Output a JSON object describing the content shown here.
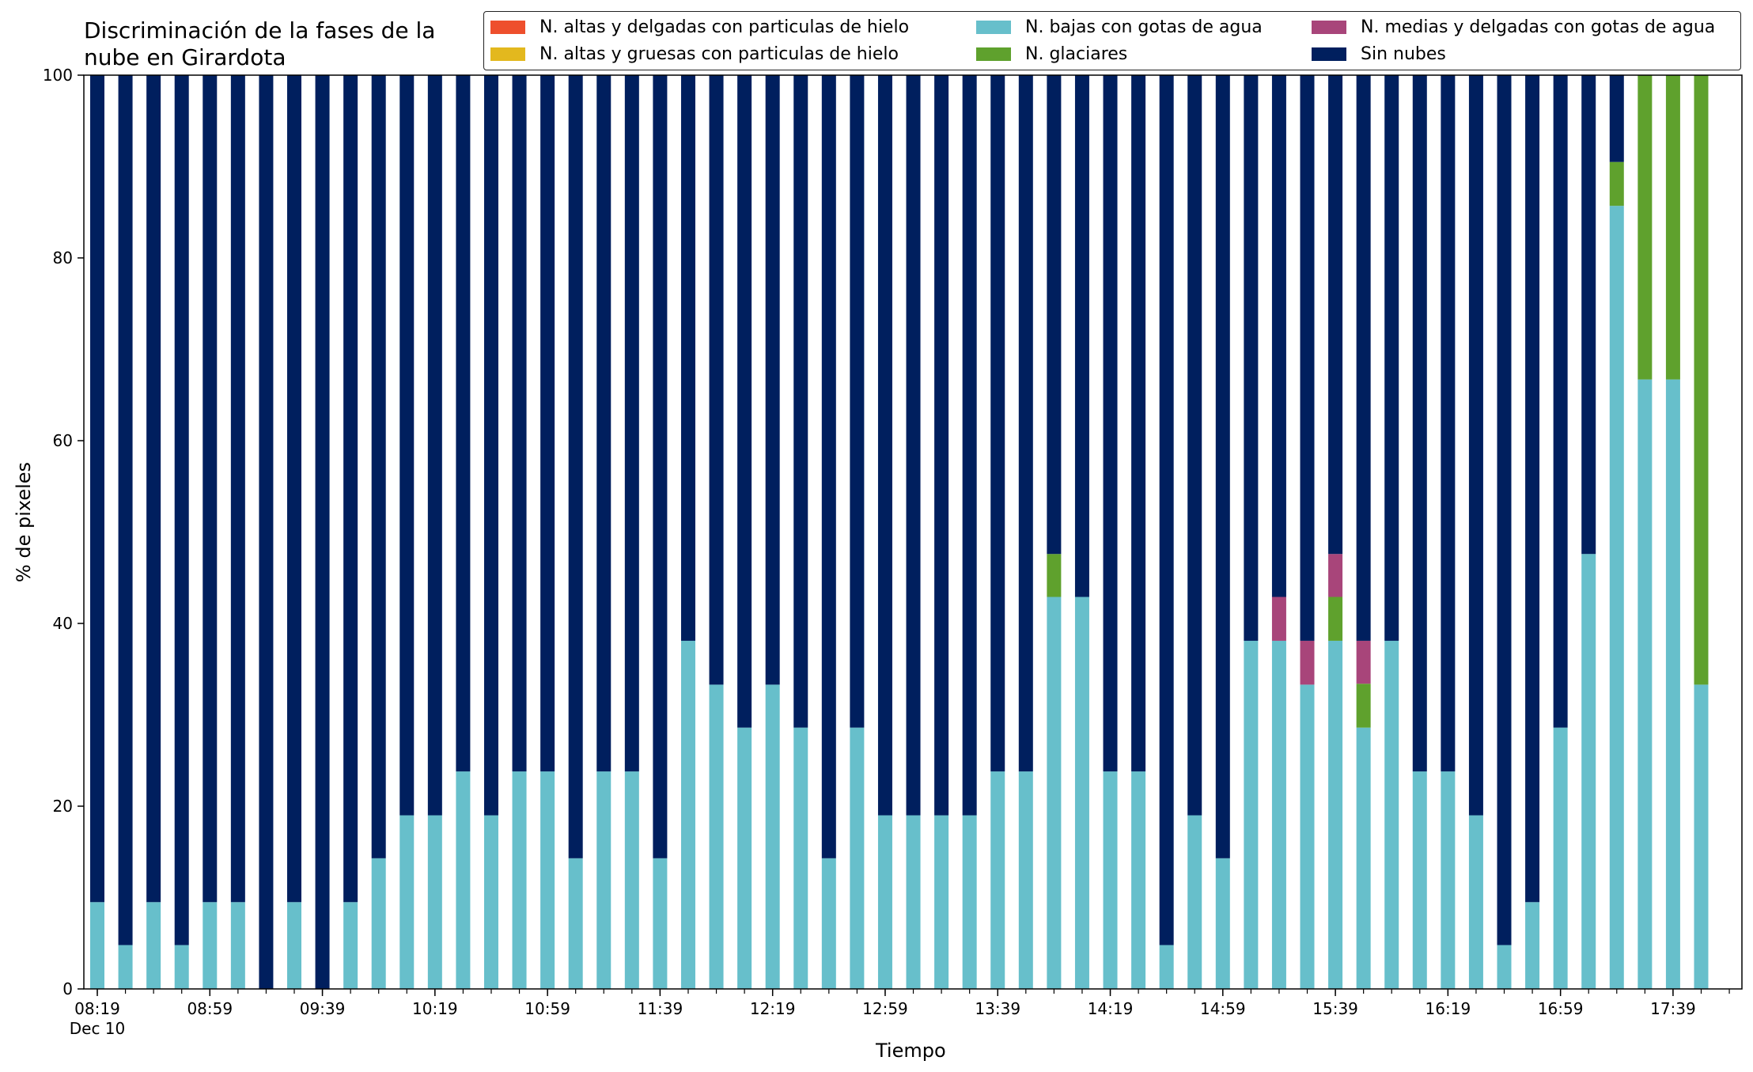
{
  "chart_data": {
    "type": "bar",
    "stacked": true,
    "title": "Discriminación de la fases de la nube en Girardota",
    "title_lines": [
      "Discriminación de la fases de la",
      "nube en Girardota"
    ],
    "xlabel": "Tiempo",
    "ylabel": "% de pixeles",
    "ylim": [
      0,
      100
    ],
    "yticks": [
      0,
      20,
      40,
      60,
      80,
      100
    ],
    "xtick_labels": [
      "08:19",
      "08:59",
      "09:39",
      "10:19",
      "10:59",
      "11:39",
      "12:19",
      "12:59",
      "13:39",
      "14:19",
      "14:59",
      "15:39",
      "16:19",
      "16:59",
      "17:39"
    ],
    "xtick_sublabel": "Dec 10",
    "grid": false,
    "legend_position": "top",
    "bar_count": 58,
    "series": [
      {
        "name": "N. bajas con gotas de agua",
        "color": "#67bfcb",
        "values": [
          9.5,
          4.8,
          9.5,
          4.8,
          9.5,
          9.5,
          0,
          9.5,
          0,
          9.5,
          14.3,
          19,
          19,
          23.8,
          19,
          23.8,
          23.8,
          14.3,
          23.8,
          23.8,
          14.3,
          38.1,
          33.3,
          28.6,
          33.3,
          28.6,
          14.3,
          28.6,
          19,
          19,
          19,
          19,
          23.8,
          23.8,
          42.9,
          42.9,
          23.8,
          23.8,
          4.8,
          19,
          14.3,
          38.1,
          38.1,
          33.3,
          38.1,
          28.6,
          38.1,
          23.8,
          23.8,
          19,
          4.8,
          9.5,
          28.6,
          47.6,
          85.7,
          66.7,
          66.7,
          33.3
        ]
      },
      {
        "name": "N. glaciares",
        "color": "#5fa12d",
        "values": [
          0,
          0,
          0,
          0,
          0,
          0,
          0,
          0,
          0,
          0,
          0,
          0,
          0,
          0,
          0,
          0,
          0,
          0,
          0,
          0,
          0,
          0,
          0,
          0,
          0,
          0,
          0,
          0,
          0,
          0,
          0,
          0,
          0,
          0,
          4.7,
          0,
          0,
          0,
          0,
          0,
          0,
          0,
          0,
          0,
          4.8,
          4.8,
          0,
          0,
          0,
          0,
          0,
          0,
          0,
          0,
          4.8,
          33.3,
          33.3,
          66.7
        ]
      },
      {
        "name": "N. medias y delgadas con gotas de agua",
        "color": "#a8457a",
        "values": [
          0,
          0,
          0,
          0,
          0,
          0,
          0,
          0,
          0,
          0,
          0,
          0,
          0,
          0,
          0,
          0,
          0,
          0,
          0,
          0,
          0,
          0,
          0,
          0,
          0,
          0,
          0,
          0,
          0,
          0,
          0,
          0,
          0,
          0,
          0,
          0,
          0,
          0,
          0,
          0,
          0,
          0,
          4.8,
          4.8,
          4.7,
          4.7,
          0,
          0,
          0,
          0,
          0,
          0,
          0,
          0,
          0,
          0,
          0,
          0
        ]
      },
      {
        "name": "N. altas y delgadas con particulas de hielo",
        "color": "#ee4f2d",
        "values": [
          0,
          0,
          0,
          0,
          0,
          0,
          0,
          0,
          0,
          0,
          0,
          0,
          0,
          0,
          0,
          0,
          0,
          0,
          0,
          0,
          0,
          0,
          0,
          0,
          0,
          0,
          0,
          0,
          0,
          0,
          0,
          0,
          0,
          0,
          0,
          0,
          0,
          0,
          0,
          0,
          0,
          0,
          0,
          0,
          0,
          0,
          0,
          0,
          0,
          0,
          0,
          0,
          0,
          0,
          0,
          0,
          0,
          0
        ]
      },
      {
        "name": "N. altas y gruesas con particulas de hielo",
        "color": "#e3b81e",
        "values": [
          0,
          0,
          0,
          0,
          0,
          0,
          0,
          0,
          0,
          0,
          0,
          0,
          0,
          0,
          0,
          0,
          0,
          0,
          0,
          0,
          0,
          0,
          0,
          0,
          0,
          0,
          0,
          0,
          0,
          0,
          0,
          0,
          0,
          0,
          0,
          0,
          0,
          0,
          0,
          0,
          0,
          0,
          0,
          0,
          0,
          0,
          0,
          0,
          0,
          0,
          0,
          0,
          0,
          0,
          0,
          0,
          0,
          0
        ]
      },
      {
        "name": "Sin nubes",
        "color": "#001f5e",
        "values": [
          90.5,
          95.2,
          90.5,
          95.2,
          90.5,
          90.5,
          100,
          90.5,
          100,
          90.5,
          85.7,
          81,
          81,
          76.2,
          81,
          76.2,
          76.2,
          85.7,
          76.2,
          76.2,
          85.7,
          61.9,
          66.7,
          71.4,
          66.7,
          71.4,
          85.7,
          71.4,
          81,
          81,
          81,
          81,
          76.2,
          76.2,
          52.4,
          57.1,
          76.2,
          76.2,
          95.2,
          81,
          85.7,
          61.9,
          57.1,
          61.9,
          52.4,
          61.9,
          61.9,
          76.2,
          76.2,
          81,
          95.2,
          90.5,
          71.4,
          52.4,
          9.5,
          0,
          0,
          0
        ]
      }
    ],
    "legend": [
      {
        "name": "N. altas y delgadas con particulas de hielo",
        "color": "#ee4f2d"
      },
      {
        "name": "N. altas y gruesas con particulas de hielo",
        "color": "#e3b81e"
      },
      {
        "name": "N. bajas con gotas de agua",
        "color": "#67bfcb"
      },
      {
        "name": "N. glaciares",
        "color": "#5fa12d"
      },
      {
        "name": "N. medias y delgadas con gotas de agua",
        "color": "#a8457a"
      },
      {
        "name": "Sin nubes",
        "color": "#001f5e"
      }
    ]
  }
}
